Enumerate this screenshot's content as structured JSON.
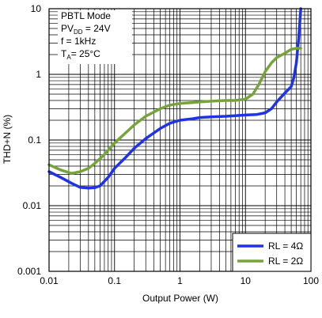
{
  "chart_data": {
    "type": "line",
    "xlabel": "Output Power (W)",
    "ylabel": "THD+N (%)",
    "xscale": "log",
    "yscale": "log",
    "xlim": [
      0.01,
      100
    ],
    "ylim": [
      0.001,
      10
    ],
    "grid": true,
    "legend_position": "bottom-right",
    "x_tick_labels": [
      "0.01",
      "0.1",
      "1",
      "10",
      "100"
    ],
    "y_tick_labels": [
      "10",
      "1",
      "0.1",
      "0.01",
      "0.001"
    ],
    "annotation": {
      "line1": "PBTL Mode",
      "line2_main": "PV",
      "line2_sub": "DD",
      "line2_rest": " = 24V",
      "line3": "f = 1kHz",
      "line4_main": "T",
      "line4_sub": "A",
      "line4_rest": "= 25°C"
    },
    "series": [
      {
        "name": "RL = 4Ω",
        "color": "#1f33e6",
        "points": [
          [
            0.01,
            0.033
          ],
          [
            0.015,
            0.027
          ],
          [
            0.022,
            0.022
          ],
          [
            0.03,
            0.019
          ],
          [
            0.04,
            0.0185
          ],
          [
            0.05,
            0.0188
          ],
          [
            0.06,
            0.02
          ],
          [
            0.08,
            0.027
          ],
          [
            0.1,
            0.037
          ],
          [
            0.15,
            0.055
          ],
          [
            0.2,
            0.075
          ],
          [
            0.3,
            0.105
          ],
          [
            0.5,
            0.15
          ],
          [
            0.7,
            0.18
          ],
          [
            1,
            0.2
          ],
          [
            1.5,
            0.21
          ],
          [
            2,
            0.22
          ],
          [
            3,
            0.225
          ],
          [
            5,
            0.23
          ],
          [
            7,
            0.235
          ],
          [
            10,
            0.24
          ],
          [
            15,
            0.245
          ],
          [
            20,
            0.26
          ],
          [
            25,
            0.3
          ],
          [
            30,
            0.38
          ],
          [
            35,
            0.45
          ],
          [
            40,
            0.52
          ],
          [
            50,
            0.65
          ],
          [
            55,
            0.9
          ],
          [
            60,
            1.5
          ],
          [
            65,
            3.5
          ],
          [
            70,
            10
          ]
        ]
      },
      {
        "name": "RL = 2Ω",
        "color": "#76a33a",
        "points": [
          [
            0.01,
            0.042
          ],
          [
            0.015,
            0.035
          ],
          [
            0.022,
            0.031
          ],
          [
            0.03,
            0.033
          ],
          [
            0.04,
            0.037
          ],
          [
            0.05,
            0.044
          ],
          [
            0.07,
            0.06
          ],
          [
            0.1,
            0.09
          ],
          [
            0.15,
            0.13
          ],
          [
            0.2,
            0.17
          ],
          [
            0.3,
            0.23
          ],
          [
            0.5,
            0.3
          ],
          [
            0.7,
            0.34
          ],
          [
            1,
            0.36
          ],
          [
            1.5,
            0.37
          ],
          [
            2,
            0.38
          ],
          [
            3,
            0.39
          ],
          [
            5,
            0.4
          ],
          [
            7,
            0.4
          ],
          [
            10,
            0.42
          ],
          [
            13,
            0.5
          ],
          [
            16,
            0.7
          ],
          [
            20,
            1.1
          ],
          [
            25,
            1.5
          ],
          [
            30,
            1.8
          ],
          [
            40,
            2.1
          ],
          [
            50,
            2.4
          ],
          [
            60,
            2.5
          ],
          [
            70,
            2.5
          ]
        ]
      }
    ]
  }
}
